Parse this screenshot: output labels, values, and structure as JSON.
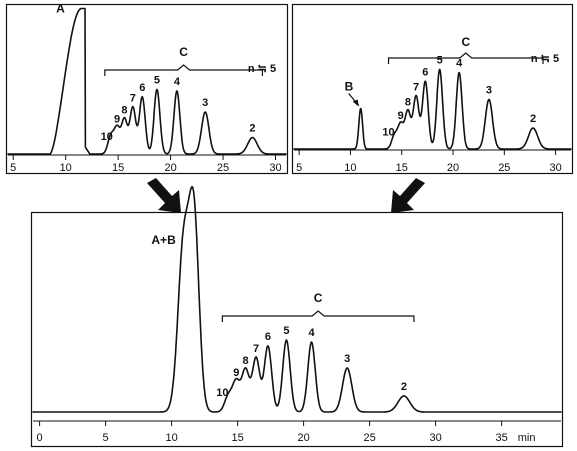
{
  "chart_data": [
    {
      "type": "line",
      "panel": "top-left",
      "x_ticks": [
        5,
        10,
        15,
        20,
        25,
        30
      ],
      "xlim": [
        4.5,
        31
      ],
      "peak_labels": [
        {
          "label": "A",
          "x": 10.8,
          "y": 0.97
        },
        {
          "label": "10",
          "x": 14.3,
          "y": 0.12
        },
        {
          "label": "9",
          "x": 14.9,
          "y": 0.17
        },
        {
          "label": "8",
          "x": 15.6,
          "y": 0.23
        },
        {
          "label": "7",
          "x": 16.4,
          "y": 0.31
        },
        {
          "label": "6",
          "x": 17.3,
          "y": 0.38
        },
        {
          "label": "5",
          "x": 18.7,
          "y": 0.43
        },
        {
          "label": "4",
          "x": 20.6,
          "y": 0.42
        },
        {
          "label": "3",
          "x": 23.3,
          "y": 0.28
        },
        {
          "label": "2",
          "x": 27.8,
          "y": 0.11
        }
      ],
      "group_label": "C",
      "annotation": "n ≒ 5"
    },
    {
      "type": "line",
      "panel": "top-right",
      "x_ticks": [
        5,
        10,
        15,
        20,
        25,
        30
      ],
      "xlim": [
        4.5,
        31.5
      ],
      "peak_labels": [
        {
          "label": "B",
          "x": 11.0,
          "y": 0.27
        },
        {
          "label": "10",
          "x": 14.3,
          "y": 0.09
        },
        {
          "label": "9",
          "x": 14.9,
          "y": 0.16
        },
        {
          "label": "8",
          "x": 15.6,
          "y": 0.25
        },
        {
          "label": "7",
          "x": 16.4,
          "y": 0.35
        },
        {
          "label": "6",
          "x": 17.3,
          "y": 0.45
        },
        {
          "label": "5",
          "x": 18.7,
          "y": 0.53
        },
        {
          "label": "4",
          "x": 20.6,
          "y": 0.51
        },
        {
          "label": "3",
          "x": 23.5,
          "y": 0.33
        },
        {
          "label": "2",
          "x": 27.8,
          "y": 0.14
        }
      ],
      "group_label": "C",
      "annotation": "n ≒ 5"
    },
    {
      "type": "line",
      "panel": "bottom",
      "x_ticks": [
        0,
        5,
        10,
        15,
        20,
        25,
        30,
        35
      ],
      "x_unit": "min",
      "xlim": [
        -0.5,
        39.5
      ],
      "peak_labels": [
        {
          "label": "A+B",
          "x": 11.5,
          "y": 0.95
        },
        {
          "label": "10",
          "x": 14.3,
          "y": 0.08
        },
        {
          "label": "9",
          "x": 14.9,
          "y": 0.15
        },
        {
          "label": "8",
          "x": 15.6,
          "y": 0.21
        },
        {
          "label": "7",
          "x": 16.4,
          "y": 0.27
        },
        {
          "label": "6",
          "x": 17.3,
          "y": 0.33
        },
        {
          "label": "5",
          "x": 18.7,
          "y": 0.36
        },
        {
          "label": "4",
          "x": 20.6,
          "y": 0.35
        },
        {
          "label": "3",
          "x": 23.3,
          "y": 0.22
        },
        {
          "label": "2",
          "x": 27.6,
          "y": 0.08
        }
      ],
      "group_label": "C"
    }
  ]
}
